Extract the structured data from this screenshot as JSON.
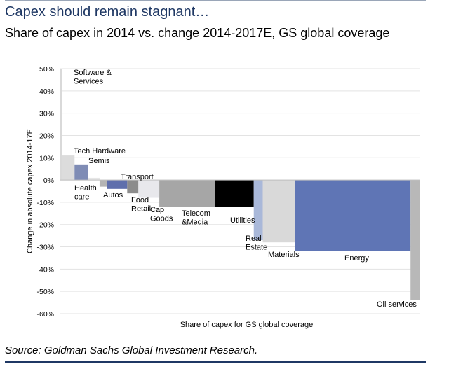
{
  "header": {
    "title": "Capex should remain stagnant…",
    "subtitle": "Share of capex in 2014 vs. change 2014-2017E, GS global coverage"
  },
  "footer": {
    "source": "Source: Goldman Sachs Global Investment Research."
  },
  "chart_data": {
    "type": "bar",
    "title": "Share of capex in 2014 vs. change 2014-2017E, GS global coverage",
    "xlabel": "Share of capex for GS global coverage",
    "ylabel": "Change in absolute capex 2014-17E",
    "ylim": [
      -60,
      50
    ],
    "y_ticks": [
      "50%",
      "40%",
      "30%",
      "20%",
      "10%",
      "0%",
      "-10%",
      "-20%",
      "-30%",
      "-40%",
      "-50%",
      "-60%"
    ],
    "y_tick_values": [
      50,
      40,
      30,
      20,
      10,
      0,
      -10,
      -20,
      -30,
      -40,
      -50,
      -60
    ],
    "grid": true,
    "x_unit": "share of capex (%)",
    "categories": [
      "Software & Services",
      "Tech Hardware",
      "Semis",
      "Health care",
      "Autos",
      "Transport",
      "Food Retail",
      "Cap Goods",
      "Telecom &Media",
      "Utilities",
      "Real Estate",
      "Materials",
      "Energy",
      "Oil services"
    ],
    "series": [
      {
        "values": [
          50,
          11,
          7,
          1,
          -3,
          -4,
          -6,
          -8,
          -12,
          -12,
          -27,
          -28,
          -32,
          -54
        ],
        "widths": [
          0.7,
          3.3,
          3.7,
          3.0,
          2.0,
          5.4,
          3.0,
          5.6,
          15.0,
          10.3,
          2.4,
          8.6,
          31.0,
          2.4
        ],
        "colors": [
          "#d9d9d9",
          "#dcdcdc",
          "#7f8cb5",
          "#e6e6e6",
          "#b4b4b4",
          "#5f6fac",
          "#8c8c8c",
          "#e8e8ec",
          "#a6a6a6",
          "#000000",
          "#a9b8d9",
          "#d9d9d9",
          "#5f75b5",
          "#b8b8b8"
        ]
      }
    ],
    "label_lines": [
      [
        "Software &",
        "Services"
      ],
      [
        "Tech Hardware"
      ],
      [
        "Semis"
      ],
      [
        "Health",
        "care"
      ],
      [
        "Autos"
      ],
      [
        "Transport"
      ],
      [
        "Food",
        "Retail"
      ],
      [
        "Cap",
        "Goods"
      ],
      [
        "Telecom",
        "&Media"
      ],
      [
        "Utilities"
      ],
      [
        "Real",
        "Estate"
      ],
      [
        "Materials"
      ],
      [
        "Energy"
      ],
      [
        "Oil services"
      ]
    ]
  }
}
